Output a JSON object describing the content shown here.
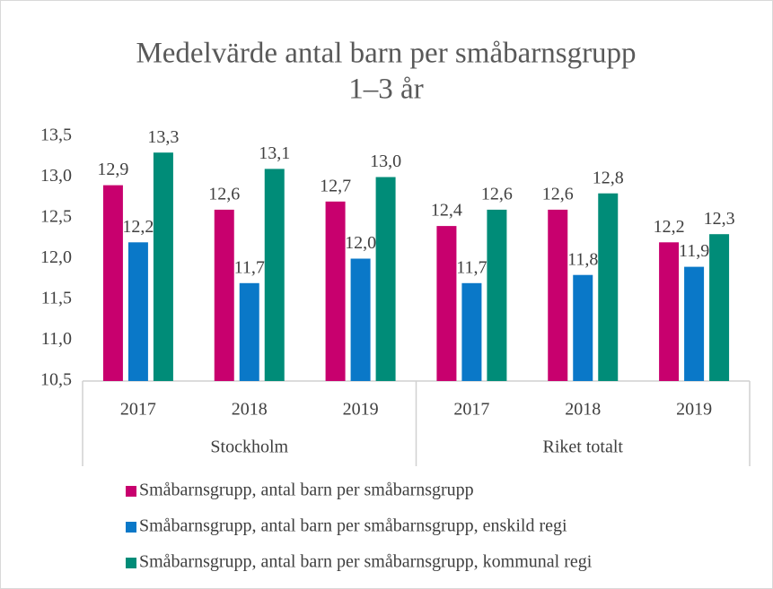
{
  "chart_data": {
    "type": "bar",
    "title": [
      "Medelvärde antal barn per småbarnsgrupp",
      "1–3 år"
    ],
    "groups": [
      {
        "name": "Stockholm",
        "categories": [
          "2017",
          "2018",
          "2019"
        ]
      },
      {
        "name": "Riket totalt",
        "categories": [
          "2017",
          "2018",
          "2019"
        ]
      }
    ],
    "series": [
      {
        "name": "Småbarnsgrupp, antal barn per småbarnsgrupp",
        "color": "#c8006e",
        "values": [
          12.9,
          12.6,
          12.7,
          12.4,
          12.6,
          12.2
        ],
        "value_labels": [
          "12,9",
          "12,6",
          "12,7",
          "12,4",
          "12,6",
          "12,2"
        ]
      },
      {
        "name": "Småbarnsgrupp, antal barn per småbarnsgrupp, enskild regi",
        "color": "#0a78c8",
        "values": [
          12.2,
          11.7,
          12.0,
          11.7,
          11.8,
          11.9
        ],
        "value_labels": [
          "12,2",
          "11,7",
          "12,0",
          "11,7",
          "11,8",
          "11,9"
        ]
      },
      {
        "name": "Småbarnsgrupp, antal barn per småbarnsgrupp, kommunal regi",
        "color": "#008c78",
        "values": [
          13.3,
          13.1,
          13.0,
          12.6,
          12.8,
          12.3
        ],
        "value_labels": [
          "13,3",
          "13,1",
          "13,0",
          "12,6",
          "12,8",
          "12,3"
        ]
      }
    ],
    "ylim": [
      10.5,
      13.5
    ],
    "yticks": [
      {
        "value": 10.5,
        "label": "10,5"
      },
      {
        "value": 11,
        "label": "11,0"
      },
      {
        "value": 11.5,
        "label": "11,5"
      },
      {
        "value": 12,
        "label": "12,0"
      },
      {
        "value": 12.5,
        "label": "12,5"
      },
      {
        "value": 13,
        "label": "13,0"
      },
      {
        "value": 13.5,
        "label": "13,5"
      }
    ],
    "grid": false,
    "legend": "bottom"
  }
}
